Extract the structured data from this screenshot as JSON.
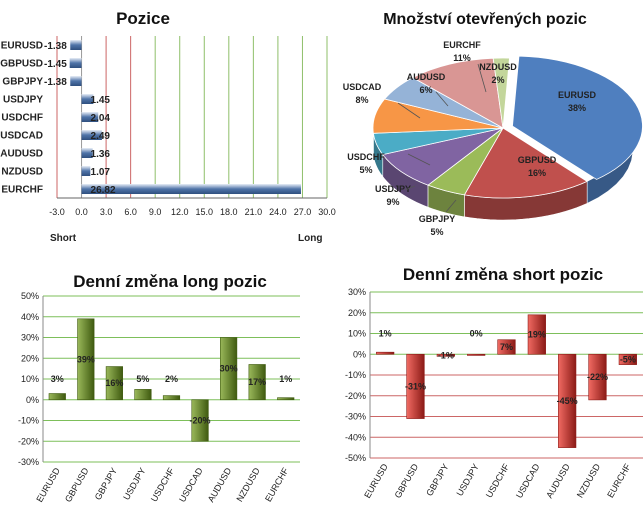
{
  "chart_data": [
    {
      "type": "bar",
      "orientation": "horizontal",
      "title": "Pozice",
      "categories": [
        "EURUSD",
        "GBPUSD",
        "GBPJPY",
        "USDJPY",
        "USDCHF",
        "USDCAD",
        "AUDUSD",
        "NZDUSD",
        "EURCHF"
      ],
      "values": [
        -1.38,
        -1.45,
        -1.38,
        1.45,
        2.04,
        2.49,
        1.36,
        1.07,
        26.82
      ],
      "value_labels": [
        "-1.38",
        "-1.45",
        "-1.38",
        "1.45",
        "2.04",
        "2.49",
        "1.36",
        "1.07",
        "26.82"
      ],
      "xlim": [
        -3,
        30
      ],
      "ticks": [
        "-3.0",
        "0.0",
        "3.0",
        "6.0",
        "9.0",
        "12.0",
        "15.0",
        "18.0",
        "21.0",
        "24.0",
        "27.0",
        "30.0"
      ],
      "tick_values": [
        -3,
        0,
        3,
        6,
        9,
        12,
        15,
        18,
        21,
        24,
        27,
        30
      ],
      "left_label": "Short",
      "right_label": "Long",
      "colors": {
        "bar": "#4f74a8",
        "negative_grid": "#cc6666",
        "positive_grid": "#8fbf6a"
      }
    },
    {
      "type": "pie",
      "title": "Množství otevřených pozic",
      "slices": [
        {
          "name": "EURUSD",
          "value": 38,
          "label": "38%",
          "color": "#4f7fbf"
        },
        {
          "name": "GBPUSD",
          "value": 16,
          "label": "16%",
          "color": "#c0504d"
        },
        {
          "name": "GBPJPY",
          "value": 5,
          "label": "5%",
          "color": "#9bbb59"
        },
        {
          "name": "USDJPY",
          "value": 9,
          "label": "9%",
          "color": "#8064a2"
        },
        {
          "name": "USDCHF",
          "value": 5,
          "label": "5%",
          "color": "#4bacc6"
        },
        {
          "name": "USDCAD",
          "value": 8,
          "label": "8%",
          "color": "#f79646"
        },
        {
          "name": "AUDUSD",
          "value": 6,
          "label": "6%",
          "color": "#95b3d7"
        },
        {
          "name": "EURCHF",
          "value": 11,
          "label": "11%",
          "color": "#d99694"
        },
        {
          "name": "NZDUSD",
          "value": 2,
          "label": "2%",
          "color": "#c3d69b"
        }
      ]
    },
    {
      "type": "bar",
      "title": "Denní změna long pozic",
      "categories": [
        "EURUSD",
        "GBPUSD",
        "GBPJPY",
        "USDJPY",
        "USDCHF",
        "USDCAD",
        "AUDUSD",
        "NZDUSD",
        "EURCHF"
      ],
      "values": [
        3,
        39,
        16,
        5,
        2,
        -20,
        30,
        17,
        1
      ],
      "value_labels": [
        "3%",
        "39%",
        "16%",
        "5%",
        "2%",
        "-20%",
        "30%",
        "17%",
        "1%"
      ],
      "ylim": [
        -30,
        50
      ],
      "yticks": [
        "-30%",
        "-20%",
        "-10%",
        "0%",
        "10%",
        "20%",
        "30%",
        "40%",
        "50%"
      ],
      "ytick_values": [
        -30,
        -20,
        -10,
        0,
        10,
        20,
        30,
        40,
        50
      ],
      "colors": {
        "bar": "#6b8e23",
        "bar_dark": "#3f5a10",
        "grid": "#7dbf5a"
      }
    },
    {
      "type": "bar",
      "title": "Denní změna short pozic",
      "categories": [
        "EURUSD",
        "GBPUSD",
        "GBPJPY",
        "USDJPY",
        "USDCHF",
        "USDCAD",
        "AUDUSD",
        "NZDUSD",
        "EURCHF"
      ],
      "values": [
        1,
        -31,
        -1,
        0,
        7,
        19,
        -45,
        -22,
        -5
      ],
      "value_labels": [
        "1%",
        "-31%",
        "-1%",
        "0%",
        "7%",
        "19%",
        "-45%",
        "-22%",
        "-5%"
      ],
      "ylim": [
        -50,
        30
      ],
      "yticks": [
        "-50%",
        "-40%",
        "-30%",
        "-20%",
        "-10%",
        "0%",
        "10%",
        "20%",
        "30%"
      ],
      "ytick_values": [
        -50,
        -40,
        -30,
        -20,
        -10,
        0,
        10,
        20,
        30
      ],
      "colors": {
        "bar": "#d9403a",
        "bar_dark": "#8b1a16",
        "grid": "#cc5555"
      }
    }
  ]
}
